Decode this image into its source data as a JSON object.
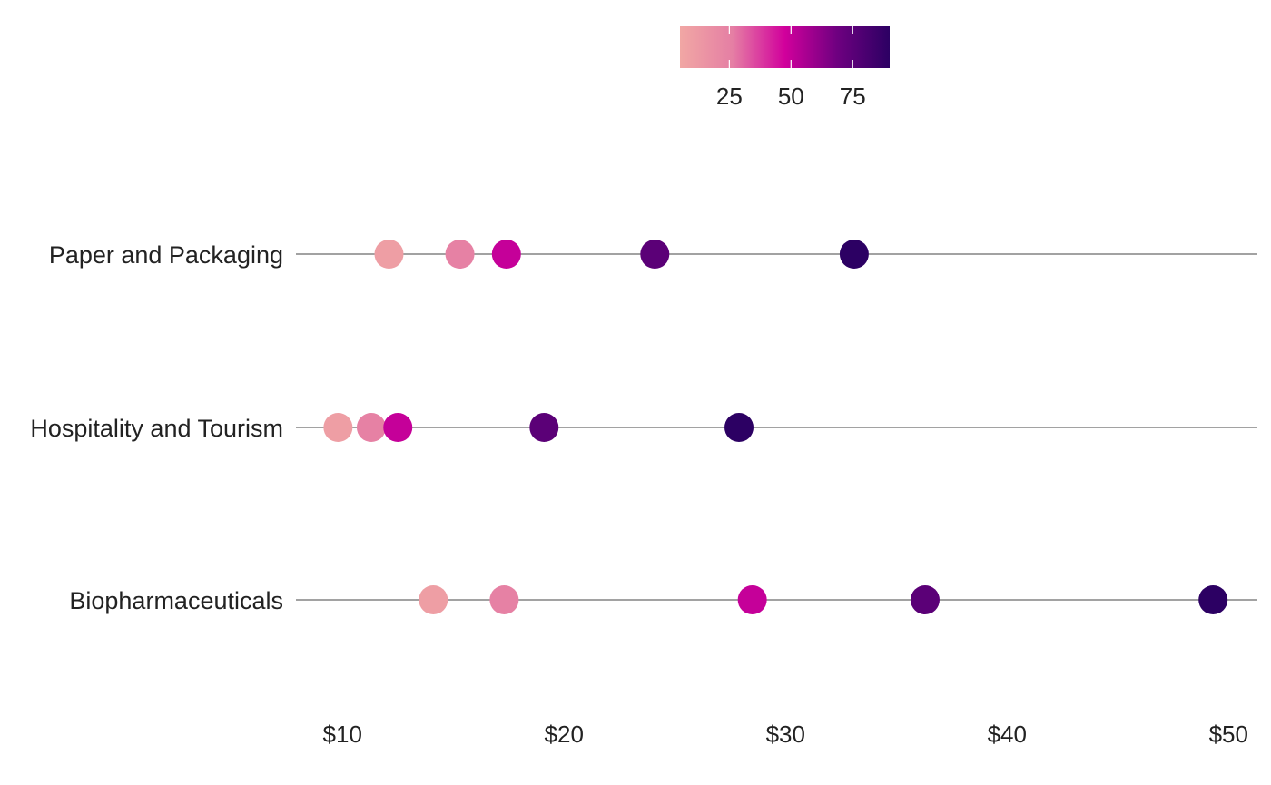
{
  "chart_data": {
    "type": "scatter",
    "subtype": "dot-strip",
    "title": "",
    "xlabel": "",
    "ylabel": "",
    "x_tick_labels": [
      "$10",
      "$20",
      "$30",
      "$40",
      "$50"
    ],
    "x_ticks": [
      10,
      20,
      30,
      40,
      50
    ],
    "xlim": [
      7.9,
      51.3
    ],
    "categories": [
      "Paper and Packaging",
      "Hospitality and Tourism",
      "Biopharmaceuticals"
    ],
    "color_variable": {
      "type": "continuous",
      "range": [
        5,
        90
      ],
      "tick_values": [
        25,
        50,
        75
      ],
      "tick_labels": [
        "25",
        "50",
        "75"
      ],
      "colors": [
        "#F1A7A4",
        "#E57FA4",
        "#D1009C",
        "#6E0080",
        "#2C0063"
      ]
    },
    "points": [
      {
        "category": "Paper and Packaging",
        "x": 12.1,
        "color_value": 10
      },
      {
        "category": "Paper and Packaging",
        "x": 15.3,
        "color_value": 25
      },
      {
        "category": "Paper and Packaging",
        "x": 17.4,
        "color_value": 50
      },
      {
        "category": "Paper and Packaging",
        "x": 24.1,
        "color_value": 75
      },
      {
        "category": "Paper and Packaging",
        "x": 33.1,
        "color_value": 90
      },
      {
        "category": "Hospitality and Tourism",
        "x": 9.8,
        "color_value": 10
      },
      {
        "category": "Hospitality and Tourism",
        "x": 11.3,
        "color_value": 25
      },
      {
        "category": "Hospitality and Tourism",
        "x": 12.5,
        "color_value": 50
      },
      {
        "category": "Hospitality and Tourism",
        "x": 19.1,
        "color_value": 75
      },
      {
        "category": "Hospitality and Tourism",
        "x": 27.9,
        "color_value": 90
      },
      {
        "category": "Biopharmaceuticals",
        "x": 14.1,
        "color_value": 10
      },
      {
        "category": "Biopharmaceuticals",
        "x": 17.3,
        "color_value": 25
      },
      {
        "category": "Biopharmaceuticals",
        "x": 28.5,
        "color_value": 50
      },
      {
        "category": "Biopharmaceuticals",
        "x": 36.3,
        "color_value": 75
      },
      {
        "category": "Biopharmaceuticals",
        "x": 49.3,
        "color_value": 90
      }
    ],
    "grid": false,
    "legend_position": "top-center",
    "line_color": "#444444"
  }
}
